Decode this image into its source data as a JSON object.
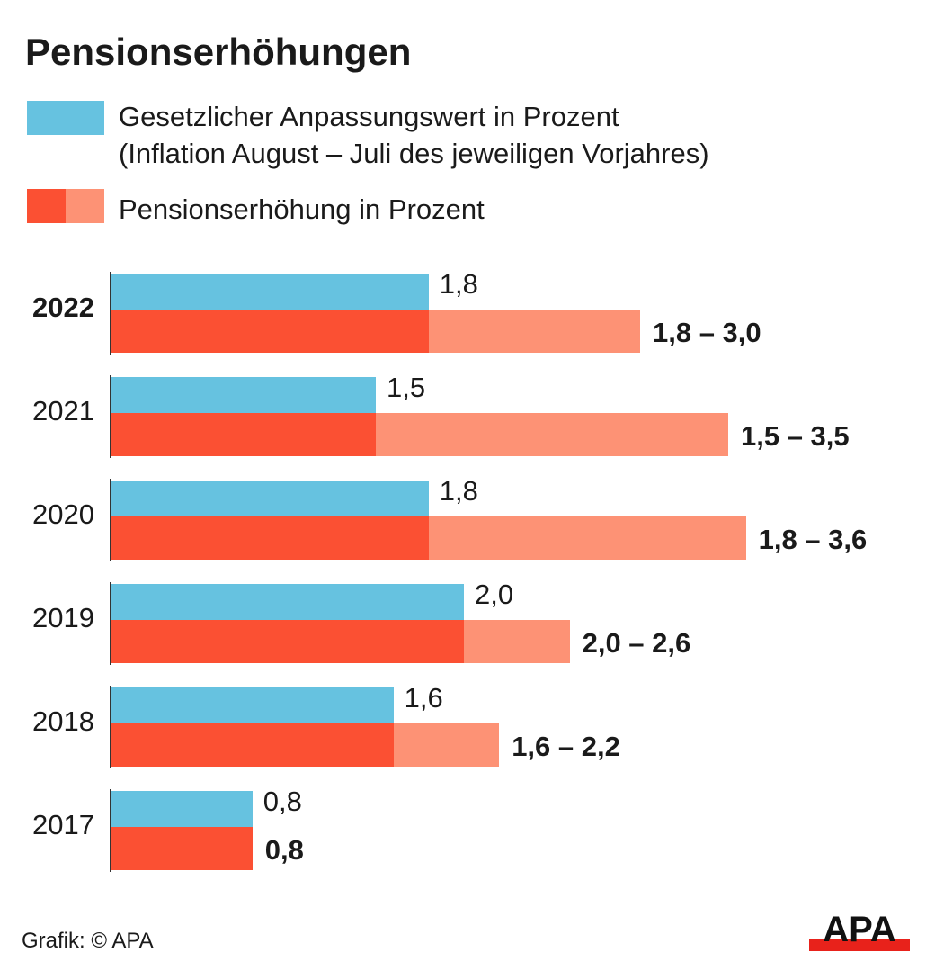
{
  "title": "Pensionserhöhungen",
  "colors": {
    "base": "#66c2e0",
    "increase_min": "#fb5033",
    "increase_range": "#fd9275"
  },
  "legend": {
    "series1_line1": "Gesetzlicher Anpassungswert in Prozent",
    "series1_line2": "(Inflation August – Juli des jeweiligen Vorjahres)",
    "series2": "Pensionserhöhung in Prozent"
  },
  "source": "Grafik: © APA",
  "logo_text": "APA",
  "chart_data": {
    "type": "bar",
    "orientation": "horizontal",
    "categories": [
      "2022",
      "2021",
      "2020",
      "2019",
      "2018",
      "2017"
    ],
    "highlighted_category": "2022",
    "series": [
      {
        "name": "Gesetzlicher Anpassungswert in Prozent",
        "values": [
          1.8,
          1.5,
          1.8,
          2.0,
          1.6,
          0.8
        ],
        "labels": [
          "1,8",
          "1,5",
          "1,8",
          "2,0",
          "1,6",
          "0,8"
        ]
      },
      {
        "name": "Pensionserhöhung in Prozent",
        "min": [
          1.8,
          1.5,
          1.8,
          2.0,
          1.6,
          0.8
        ],
        "max": [
          3.0,
          3.5,
          3.6,
          2.6,
          2.2,
          0.8
        ],
        "labels": [
          "1,8 – 3,0",
          "1,5 – 3,5",
          "1,8 – 3,6",
          "2,0 – 2,6",
          "1,6 – 2,2",
          "0,8"
        ]
      }
    ],
    "grid": false,
    "legend_position": "top"
  }
}
